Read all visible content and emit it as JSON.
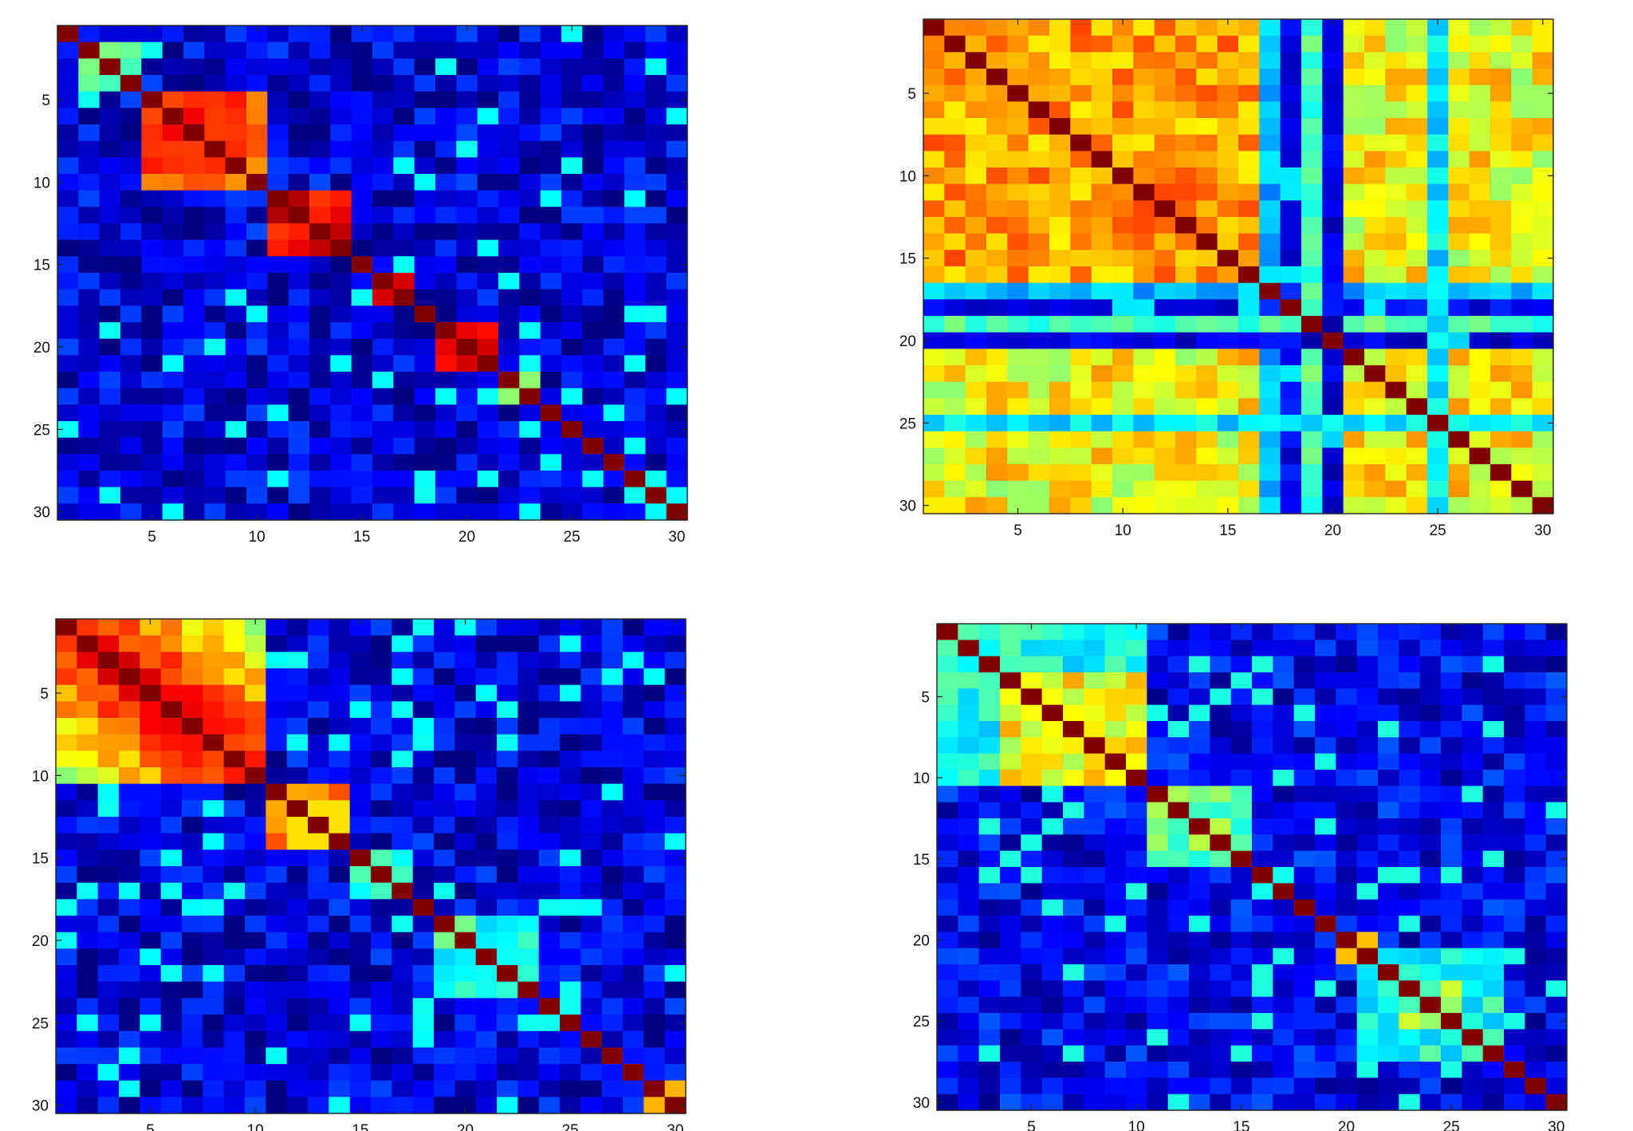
{
  "chart_data": [
    {
      "type": "heatmap",
      "size": 30,
      "colormap": "jet",
      "clim": [
        0,
        1
      ],
      "xlim": [
        0.5,
        30.5
      ],
      "ylim": [
        30.5,
        0.5
      ],
      "xticks": [
        5,
        10,
        15,
        20,
        25,
        30
      ],
      "yticks": [
        5,
        10,
        15,
        20,
        25,
        30
      ],
      "diagonal": 1.0,
      "background": 0.1,
      "blocks": [
        {
          "range": [
            2,
            4
          ],
          "value": 0.45
        },
        {
          "range": [
            5,
            10
          ],
          "value": 0.8
        },
        {
          "range": [
            11,
            14
          ],
          "value": 0.9
        },
        {
          "range": [
            16,
            17
          ],
          "value": 0.92
        },
        {
          "range": [
            19,
            21
          ],
          "value": 0.85
        },
        {
          "range": [
            22,
            23
          ],
          "value": 0.55
        }
      ]
    },
    {
      "type": "heatmap",
      "size": 30,
      "colormap": "jet",
      "clim": [
        0,
        1
      ],
      "xlim": [
        0.5,
        30.5
      ],
      "ylim": [
        30.5,
        0.5
      ],
      "xticks": [
        5,
        10,
        15,
        20,
        25,
        30
      ],
      "yticks": [
        5,
        10,
        15,
        20,
        25,
        30
      ],
      "diagonal": 1.0,
      "background": 0.62,
      "blocks": [
        {
          "range": [
            1,
            16
          ],
          "value": 0.72
        },
        {
          "range": [
            21,
            24
          ],
          "value": 0.6
        },
        {
          "range": [
            26,
            30
          ],
          "value": 0.62
        }
      ],
      "bands": [
        {
          "index": 17,
          "value": 0.3
        },
        {
          "index": 18,
          "value": 0.12
        },
        {
          "index": 19,
          "value": 0.45
        },
        {
          "index": 20,
          "value": 0.1
        },
        {
          "index": 25,
          "value": 0.35
        }
      ]
    },
    {
      "type": "heatmap",
      "size": 30,
      "colormap": "jet",
      "clim": [
        0,
        1
      ],
      "xlim": [
        0.5,
        30.5
      ],
      "ylim": [
        30.5,
        0.5
      ],
      "xticks": [
        5,
        10,
        15,
        20,
        25,
        30
      ],
      "yticks": [
        5,
        10,
        15,
        20,
        25,
        30
      ],
      "diagonal": 1.0,
      "background": 0.1,
      "blocks": [
        {
          "range": [
            1,
            10
          ],
          "value": 0.55,
          "banded": true
        },
        {
          "range": [
            11,
            14
          ],
          "value": 0.72
        },
        {
          "range": [
            15,
            17
          ],
          "value": 0.4
        },
        {
          "range": [
            19,
            23
          ],
          "value": 0.42
        },
        {
          "range": [
            29,
            30
          ],
          "value": 0.75
        }
      ]
    },
    {
      "type": "heatmap",
      "size": 30,
      "colormap": "jet",
      "clim": [
        0,
        1
      ],
      "xlim": [
        0.5,
        30.5
      ],
      "ylim": [
        30.5,
        0.5
      ],
      "xticks": [
        5,
        10,
        15,
        20,
        25,
        30
      ],
      "yticks": [
        5,
        10,
        15,
        20,
        25,
        30
      ],
      "diagonal": 1.0,
      "background": 0.12,
      "blocks": [
        {
          "range": [
            1,
            10
          ],
          "value": 0.38
        },
        {
          "range": [
            4,
            10
          ],
          "value": 0.62
        },
        {
          "range": [
            11,
            15
          ],
          "value": 0.48
        },
        {
          "range": [
            16,
            17
          ],
          "value": 0.45
        },
        {
          "range": [
            20,
            21
          ],
          "value": 0.62
        },
        {
          "range": [
            21,
            27
          ],
          "value": 0.4
        },
        {
          "range": [
            23,
            25
          ],
          "value": 0.52
        }
      ]
    }
  ]
}
